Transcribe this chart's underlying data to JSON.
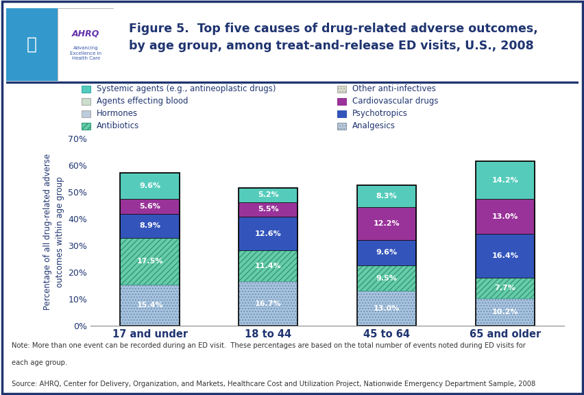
{
  "categories": [
    "17 and under",
    "18 to 44",
    "45 to 64",
    "65 and older"
  ],
  "segments": [
    {
      "label": "Analgesics",
      "values": [
        15.4,
        16.7,
        13.0,
        10.2
      ],
      "color": "#A8C4E0",
      "hatch": "....",
      "edgecolor": "#7090B0"
    },
    {
      "label": "Antibiotics",
      "values": [
        17.5,
        11.4,
        9.5,
        7.7
      ],
      "color": "#66CCAA",
      "hatch": "////",
      "edgecolor": "#339977"
    },
    {
      "label": "Psychotropics",
      "values": [
        8.9,
        12.6,
        9.6,
        16.4
      ],
      "color": "#3355BB",
      "hatch": "",
      "edgecolor": "#3355BB"
    },
    {
      "label": "Cardiovascular drugs",
      "values": [
        5.6,
        5.5,
        12.2,
        13.0
      ],
      "color": "#993399",
      "hatch": "",
      "edgecolor": "#993399"
    },
    {
      "label": "Systemic agents (e.g., antineoplastic drugs)",
      "values": [
        9.6,
        5.2,
        8.3,
        14.2
      ],
      "color": "#55CCBB",
      "hatch": "",
      "edgecolor": "#33AAAA"
    }
  ],
  "legend_rows": [
    [
      {
        "label": "Systemic agents (e.g., antineoplastic drugs)",
        "color": "#55CCBB",
        "hatch": "",
        "edgecolor": "#33AAAA"
      },
      {
        "label": "Other anti-infectives",
        "color": "#DDDDCC",
        "hatch": "....",
        "edgecolor": "#AAAAAA"
      }
    ],
    [
      {
        "label": "Agents effecting blood",
        "color": "#CCDDCC",
        "hatch": "",
        "edgecolor": "#AAAAAA"
      },
      {
        "label": "Cardiovascular drugs",
        "color": "#993399",
        "hatch": "",
        "edgecolor": "#993399"
      }
    ],
    [
      {
        "label": "Hormones",
        "color": "#BBCCDD",
        "hatch": "",
        "edgecolor": "#AAAAAA"
      },
      {
        "label": "Psychotropics",
        "color": "#3355BB",
        "hatch": "",
        "edgecolor": "#3355BB"
      }
    ],
    [
      {
        "label": "Antibiotics",
        "color": "#66CCAA",
        "hatch": "////",
        "edgecolor": "#339977"
      },
      {
        "label": "Analgesics",
        "color": "#BBCCDD",
        "hatch": "....",
        "edgecolor": "#8899AA"
      }
    ]
  ],
  "ylabel": "Percentage of all drug-related adverse\noutcomes within age group",
  "ylim": [
    0,
    70
  ],
  "yticks": [
    0,
    10,
    20,
    30,
    40,
    50,
    60,
    70
  ],
  "title_line1": "Figure 5.  Top five causes of drug-related adverse outcomes,",
  "title_line2": "by age group, among treat-and-release ED visits, U.S., 2008",
  "title_color": "#1F3470",
  "bar_width": 0.5,
  "note_line1": "Note: More than one event can be recorded during an ED visit.  These percentages are based on the total number of events noted during ED visits for",
  "note_line2": "each age group.",
  "source": "Source: AHRQ, Center for Delivery, Organization, and Markets, Healthcare Cost and Utilization Project, Nationwide Emergency Department Sample, 2008",
  "border_color": "#1F3470",
  "axis_color": "#1F3470",
  "text_color": "#1F3470"
}
